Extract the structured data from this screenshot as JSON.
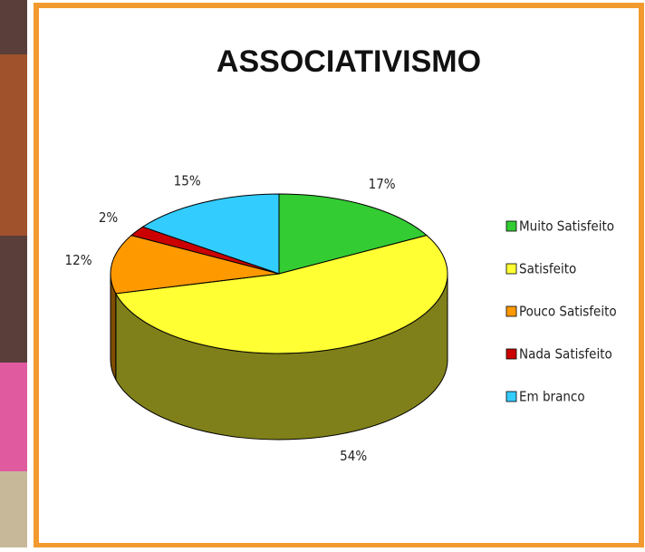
{
  "chart_data": {
    "type": "pie3d",
    "title": "ASSOCIATIVISMO",
    "categories": [
      "Muito Satisfeito",
      "Satisfeito",
      "Pouco Satisfeito",
      "Nada Satisfeito",
      "Em branco"
    ],
    "values": [
      17,
      54,
      12,
      2,
      15
    ],
    "value_labels": [
      "17%",
      "54%",
      "12%",
      "2%",
      "15%"
    ],
    "colors": [
      "#33cc33",
      "#ffff33",
      "#ff9900",
      "#cc0000",
      "#33ccff"
    ],
    "legend": "right"
  }
}
